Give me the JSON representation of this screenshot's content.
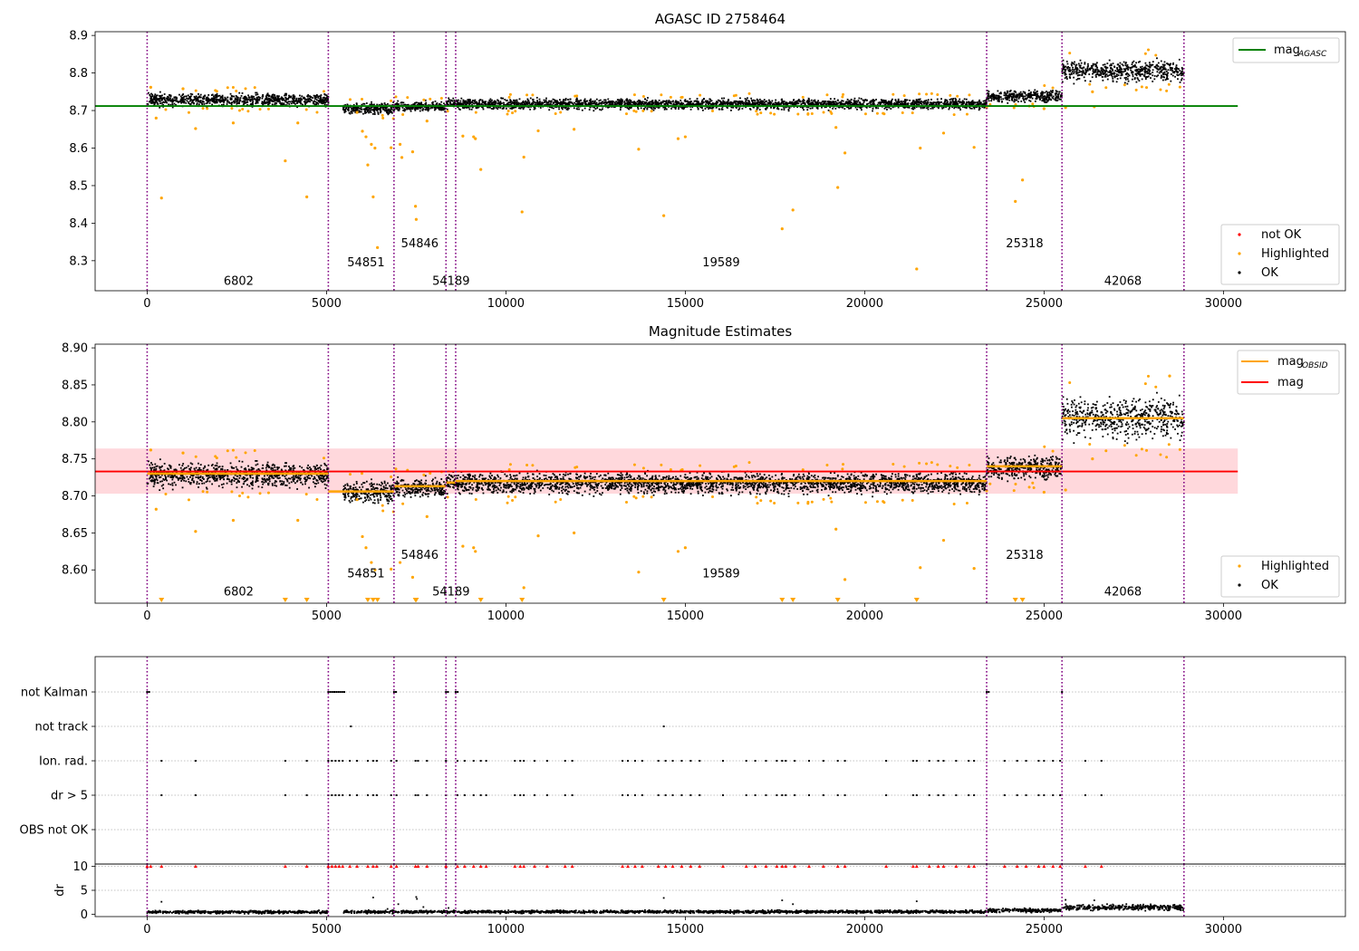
{
  "chart_data": [
    {
      "id": "agasc",
      "type": "scatter",
      "title": "AGASC ID 2758464",
      "xlim": [
        -1450,
        33400
      ],
      "ylim": [
        8.22,
        8.91
      ],
      "xticks": [
        0,
        5000,
        10000,
        15000,
        20000,
        25000,
        30000
      ],
      "yticks": [
        8.3,
        8.4,
        8.5,
        8.6,
        8.7,
        8.8,
        8.9
      ],
      "ytick_format": 1,
      "reference_line": {
        "name": "mag",
        "sub": "AGASC",
        "value": 8.712,
        "x_range": [
          -1450,
          30400
        ],
        "color": "#008000"
      },
      "obs_boundaries": [
        0,
        5050,
        6880,
        8330,
        8600,
        23400,
        25500,
        28900
      ],
      "obs_labels": [
        {
          "text": "6802",
          "x": 2550,
          "y": 8.245
        },
        {
          "text": "54851",
          "x": 6100,
          "y": 8.295
        },
        {
          "text": "54846",
          "x": 7600,
          "y": 8.345
        },
        {
          "text": "54189",
          "x": 8470,
          "y": 8.245
        },
        {
          "text": "19589",
          "x": 16000,
          "y": 8.295
        },
        {
          "text": "25318",
          "x": 24460,
          "y": 8.345
        },
        {
          "text": "42068",
          "x": 27200,
          "y": 8.245
        }
      ],
      "segments": [
        {
          "x0": 0,
          "x1": 5050,
          "mean": 8.728,
          "spread": 0.013
        },
        {
          "x0": 5450,
          "x1": 6880,
          "mean": 8.705,
          "spread": 0.011
        },
        {
          "x0": 6880,
          "x1": 8330,
          "mean": 8.711,
          "spread": 0.01
        },
        {
          "x0": 8330,
          "x1": 8600,
          "mean": 8.718,
          "spread": 0.01
        },
        {
          "x0": 8600,
          "x1": 23400,
          "mean": 8.717,
          "spread": 0.011
        },
        {
          "x0": 23400,
          "x1": 25500,
          "mean": 8.738,
          "spread": 0.012
        },
        {
          "x0": 25500,
          "x1": 28900,
          "mean": 8.805,
          "spread": 0.022
        }
      ],
      "highlighted_outliers": [
        [
          100,
          8.762
        ],
        [
          250,
          8.68
        ],
        [
          400,
          8.467
        ],
        [
          1000,
          8.758
        ],
        [
          1350,
          8.652
        ],
        [
          2400,
          8.667
        ],
        [
          3850,
          8.566
        ],
        [
          4200,
          8.667
        ],
        [
          4450,
          8.47
        ],
        [
          5850,
          8.695
        ],
        [
          6000,
          8.645
        ],
        [
          6100,
          8.63
        ],
        [
          6150,
          8.555
        ],
        [
          6250,
          8.61
        ],
        [
          6300,
          8.47
        ],
        [
          6350,
          8.6
        ],
        [
          6420,
          8.335
        ],
        [
          6800,
          8.601
        ],
        [
          7050,
          8.61
        ],
        [
          7100,
          8.575
        ],
        [
          7400,
          8.59
        ],
        [
          7480,
          8.445
        ],
        [
          7500,
          8.41
        ],
        [
          7800,
          8.672
        ],
        [
          8800,
          8.632
        ],
        [
          9100,
          8.63
        ],
        [
          9150,
          8.625
        ],
        [
          9300,
          8.543
        ],
        [
          10450,
          8.43
        ],
        [
          10500,
          8.576
        ],
        [
          10900,
          8.646
        ],
        [
          11900,
          8.65
        ],
        [
          13700,
          8.597
        ],
        [
          14400,
          8.42
        ],
        [
          14800,
          8.625
        ],
        [
          15000,
          8.63
        ],
        [
          17700,
          8.385
        ],
        [
          18000,
          8.435
        ],
        [
          19250,
          8.495
        ],
        [
          19450,
          8.587
        ],
        [
          19200,
          8.655
        ],
        [
          21450,
          8.278
        ],
        [
          21550,
          8.6
        ],
        [
          22200,
          8.64
        ],
        [
          23050,
          8.602
        ],
        [
          24200,
          8.458
        ],
        [
          24400,
          8.515
        ],
        [
          25000,
          8.705
        ],
        [
          25600,
          8.708
        ],
        [
          26350,
          8.75
        ],
        [
          26400,
          8.71
        ]
      ],
      "legend_reference": {
        "label": "mag",
        "sub": "AGASC",
        "color": "#008000"
      },
      "legend_points": [
        {
          "label": "not OK",
          "color": "#ff0000"
        },
        {
          "label": "Highlighted",
          "color": "#ffa500"
        },
        {
          "label": "OK",
          "color": "#000000"
        }
      ]
    },
    {
      "id": "estimates",
      "type": "scatter",
      "title": "Magnitude Estimates",
      "xlim": [
        -1450,
        33400
      ],
      "ylim": [
        8.555,
        8.905
      ],
      "xticks": [
        0,
        5000,
        10000,
        15000,
        20000,
        25000,
        30000
      ],
      "yticks": [
        8.6,
        8.65,
        8.7,
        8.75,
        8.8,
        8.85,
        8.9
      ],
      "ytick_format": 2,
      "reference_line": {
        "name": "mag",
        "value": 8.733,
        "x_range": [
          -1450,
          30400
        ],
        "color": "#ff0000"
      },
      "band": {
        "low": 8.703,
        "high": 8.764,
        "x_range": [
          -1450,
          30400
        ],
        "color": "#ffd8dc"
      },
      "obs_boundaries": [
        0,
        5050,
        6880,
        8330,
        8600,
        23400,
        25500,
        28900
      ],
      "obs_labels": [
        {
          "text": "6802",
          "x": 2550,
          "y": 8.57
        },
        {
          "text": "54851",
          "x": 6100,
          "y": 8.595
        },
        {
          "text": "54846",
          "x": 7600,
          "y": 8.62
        },
        {
          "text": "54189",
          "x": 8470,
          "y": 8.57
        },
        {
          "text": "19589",
          "x": 16000,
          "y": 8.595
        },
        {
          "text": "25318",
          "x": 24460,
          "y": 8.62
        },
        {
          "text": "42068",
          "x": 27200,
          "y": 8.57
        }
      ],
      "segments": [
        {
          "x0": 0,
          "x1": 5050,
          "mean": 8.728,
          "spread": 0.013
        },
        {
          "x0": 5450,
          "x1": 6880,
          "mean": 8.705,
          "spread": 0.011
        },
        {
          "x0": 6880,
          "x1": 8330,
          "mean": 8.711,
          "spread": 0.01
        },
        {
          "x0": 8330,
          "x1": 8600,
          "mean": 8.718,
          "spread": 0.01
        },
        {
          "x0": 8600,
          "x1": 23400,
          "mean": 8.717,
          "spread": 0.011
        },
        {
          "x0": 23400,
          "x1": 25500,
          "mean": 8.738,
          "spread": 0.012
        },
        {
          "x0": 25500,
          "x1": 28900,
          "mean": 8.805,
          "spread": 0.022
        }
      ],
      "obsid_means": [
        {
          "x0": 0,
          "x1": 5050,
          "value": 8.73
        },
        {
          "x0": 5050,
          "x1": 6880,
          "value": 8.706
        },
        {
          "x0": 6880,
          "x1": 8330,
          "value": 8.713
        },
        {
          "x0": 8330,
          "x1": 8600,
          "value": 8.718
        },
        {
          "x0": 8600,
          "x1": 23400,
          "value": 8.72
        },
        {
          "x0": 23400,
          "x1": 25500,
          "value": 8.74
        },
        {
          "x0": 25500,
          "x1": 28900,
          "value": 8.805
        }
      ],
      "highlighted_outliers": [
        [
          100,
          8.762
        ],
        [
          250,
          8.682
        ],
        [
          1000,
          8.758
        ],
        [
          1350,
          8.652
        ],
        [
          2400,
          8.667
        ],
        [
          4200,
          8.667
        ],
        [
          5850,
          8.695
        ],
        [
          6000,
          8.645
        ],
        [
          6100,
          8.63
        ],
        [
          6250,
          8.61
        ],
        [
          6350,
          8.6
        ],
        [
          6800,
          8.601
        ],
        [
          7050,
          8.61
        ],
        [
          7400,
          8.59
        ],
        [
          7800,
          8.672
        ],
        [
          8800,
          8.632
        ],
        [
          9100,
          8.63
        ],
        [
          9150,
          8.625
        ],
        [
          10500,
          8.576
        ],
        [
          10900,
          8.646
        ],
        [
          11900,
          8.65
        ],
        [
          13700,
          8.597
        ],
        [
          14800,
          8.625
        ],
        [
          15000,
          8.63
        ],
        [
          19200,
          8.655
        ],
        [
          19450,
          8.587
        ],
        [
          21550,
          8.603
        ],
        [
          22200,
          8.64
        ],
        [
          23050,
          8.602
        ],
        [
          25000,
          8.705
        ],
        [
          25600,
          8.708
        ],
        [
          26350,
          8.75
        ],
        [
          28500,
          8.862
        ]
      ],
      "clipped_low_markers": [
        400,
        3850,
        4450,
        6150,
        6300,
        6420,
        7480,
        7500,
        9300,
        10450,
        14400,
        17700,
        18000,
        19250,
        21450,
        24200,
        24400
      ],
      "legend_lines": [
        {
          "label": "mag",
          "sub": "OBSID",
          "color": "#ffa500"
        },
        {
          "label": "mag",
          "sub": "",
          "color": "#ff0000"
        }
      ],
      "legend_points": [
        {
          "label": "Highlighted",
          "color": "#ffa500"
        },
        {
          "label": "OK",
          "color": "#000000"
        }
      ]
    },
    {
      "id": "flags",
      "type": "scatter",
      "xlim": [
        -1450,
        33400
      ],
      "categories": [
        "not Kalman",
        "not track",
        "Ion. rad.",
        "dr > 5",
        "OBS not OK"
      ],
      "flag_points": {
        "not Kalman": [
          [
            0,
            60
          ],
          [
            5050,
            480
          ],
          [
            6880,
            60
          ],
          [
            8330,
            60
          ],
          [
            8600,
            60
          ],
          [
            23400,
            60
          ],
          [
            25500,
            40
          ]
        ],
        "not track": [
          [
            5680,
            20
          ],
          [
            14400,
            20
          ]
        ],
        "Ion. rad.": [
          400,
          1350,
          3850,
          4450,
          5050,
          5150,
          5250,
          5350,
          5450,
          5650,
          5850,
          6150,
          6300,
          6400,
          6800,
          6950,
          7480,
          7550,
          7800,
          8330,
          8650,
          8850,
          9100,
          9300,
          9450,
          10250,
          10400,
          10500,
          10800,
          11150,
          11650,
          11850,
          13250,
          13400,
          13600,
          13800,
          14250,
          14450,
          14650,
          14900,
          15150,
          15400,
          16050,
          16700,
          16950,
          17250,
          17550,
          17700,
          17800,
          18050,
          18450,
          18850,
          19250,
          19450,
          20600,
          21350,
          21450,
          21800,
          22050,
          22200,
          22550,
          22900,
          23050,
          23900,
          24250,
          24500,
          24850,
          25000,
          25250,
          25450,
          26150,
          26600
        ],
        "dr > 5": [
          400,
          1350,
          3850,
          4450,
          5050,
          5150,
          5250,
          5350,
          5450,
          5650,
          5850,
          6150,
          6300,
          6400,
          6800,
          6950,
          7480,
          7550,
          7800,
          8330,
          8650,
          8850,
          9100,
          9300,
          9450,
          10250,
          10400,
          10500,
          10800,
          11150,
          11650,
          11850,
          13250,
          13400,
          13600,
          13800,
          14250,
          14450,
          14650,
          14900,
          15150,
          15400,
          16050,
          16700,
          16950,
          17250,
          17550,
          17700,
          17800,
          18050,
          18450,
          18850,
          19250,
          19450,
          20600,
          21350,
          21450,
          21800,
          22050,
          22200,
          22550,
          22900,
          23050,
          23900,
          24250,
          24500,
          24850,
          25000,
          25250,
          25450,
          26150,
          26600
        ],
        "OBS not OK": []
      },
      "obs_boundaries": [
        0,
        5050,
        6880,
        8330,
        8600,
        23400,
        25500,
        28900
      ]
    },
    {
      "id": "dr",
      "type": "scatter",
      "ylabel": "dr",
      "xlim": [
        -1450,
        33400
      ],
      "ylim": [
        -0.5,
        10.5
      ],
      "xticks": [
        0,
        5000,
        10000,
        15000,
        20000,
        25000,
        30000
      ],
      "yticks": [
        0,
        5,
        10
      ],
      "segments": [
        {
          "x0": 0,
          "x1": 5050,
          "mean": 0.45,
          "spread": 0.25
        },
        {
          "x0": 5450,
          "x1": 6880,
          "mean": 0.5,
          "spread": 0.25
        },
        {
          "x0": 6880,
          "x1": 8330,
          "mean": 0.5,
          "spread": 0.25
        },
        {
          "x0": 8330,
          "x1": 8600,
          "mean": 0.5,
          "spread": 0.25
        },
        {
          "x0": 8600,
          "x1": 23400,
          "mean": 0.5,
          "spread": 0.25
        },
        {
          "x0": 23400,
          "x1": 25500,
          "mean": 0.8,
          "spread": 0.35
        },
        {
          "x0": 25500,
          "x1": 28900,
          "mean": 1.4,
          "spread": 0.5
        }
      ],
      "capped_points": [
        0,
        100,
        400,
        1350,
        3850,
        4450,
        5050,
        5150,
        5250,
        5350,
        5450,
        5650,
        5850,
        6150,
        6300,
        6400,
        6800,
        6950,
        7480,
        7550,
        7800,
        8330,
        8650,
        8850,
        9100,
        9300,
        9450,
        10250,
        10400,
        10500,
        10800,
        11150,
        11650,
        11850,
        13250,
        13400,
        13600,
        13800,
        14250,
        14450,
        14650,
        14900,
        15150,
        15400,
        16050,
        16700,
        16950,
        17250,
        17550,
        17700,
        17800,
        18050,
        18450,
        18850,
        19250,
        19450,
        20600,
        21350,
        21450,
        21800,
        22050,
        22200,
        22550,
        22900,
        23050,
        23900,
        24250,
        24500,
        24850,
        25000,
        25250,
        25450,
        26150,
        26600
      ],
      "scattered_points": [
        [
          400,
          2.6
        ],
        [
          6300,
          3.5
        ],
        [
          6700,
          1.1
        ],
        [
          7000,
          2.1
        ],
        [
          7500,
          3.6
        ],
        [
          7520,
          3.2
        ],
        [
          7700,
          1.5
        ],
        [
          8400,
          1.3
        ],
        [
          14400,
          3.4
        ],
        [
          17700,
          2.9
        ],
        [
          18000,
          2.1
        ],
        [
          21450,
          2.7
        ],
        [
          25600,
          3.0
        ],
        [
          26400,
          2.9
        ]
      ],
      "obs_boundaries": [
        0,
        5050,
        6880,
        8330,
        8600,
        23400,
        25500,
        28900
      ]
    }
  ],
  "colors": {
    "ok": "#000000",
    "highlighted": "#ffa500",
    "not_ok": "#ff0000",
    "boundary": "#800080",
    "grid": "#b0b0b0"
  }
}
